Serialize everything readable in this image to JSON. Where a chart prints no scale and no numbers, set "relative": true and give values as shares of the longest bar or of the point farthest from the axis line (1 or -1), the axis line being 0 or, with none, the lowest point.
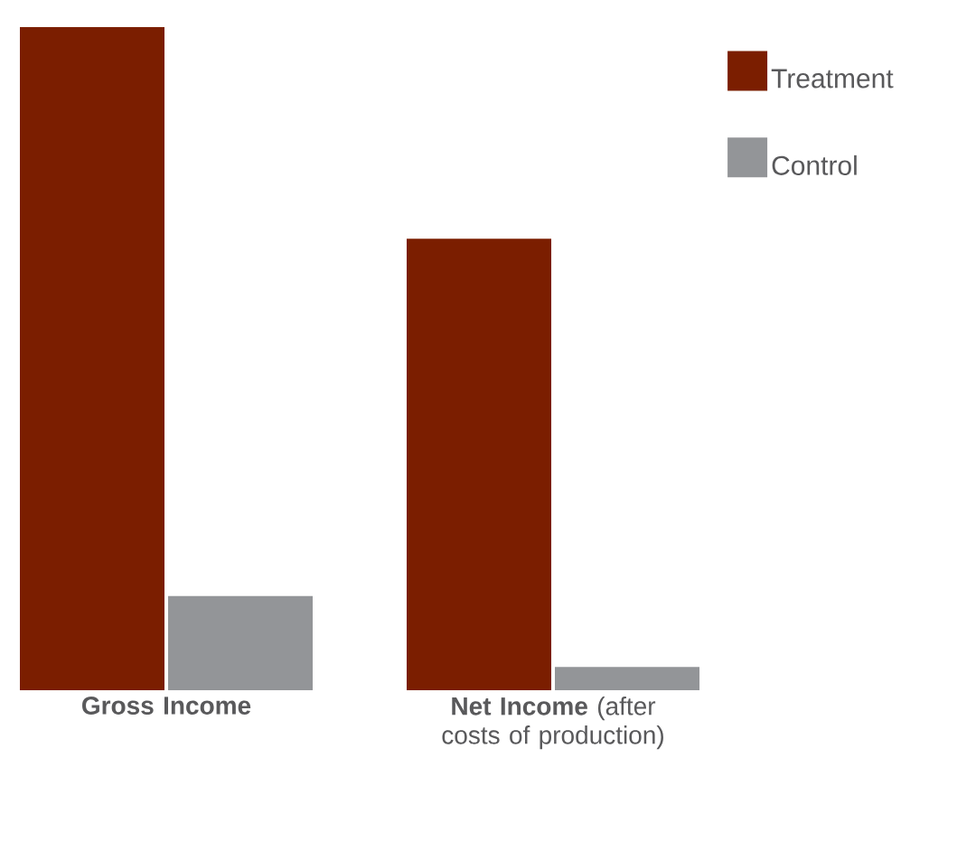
{
  "chart_data": {
    "type": "bar",
    "relative": true,
    "categories": [
      "Gross Income",
      "**Net Income** (after costs of production)"
    ],
    "series": [
      {
        "name": "Treatment",
        "color": "#7b1e00",
        "values": [
          1,
          0.681
        ]
      },
      {
        "name": "Control",
        "color": "#939598",
        "values": [
          0.142,
          0.035
        ]
      }
    ],
    "legend": "top right"
  }
}
